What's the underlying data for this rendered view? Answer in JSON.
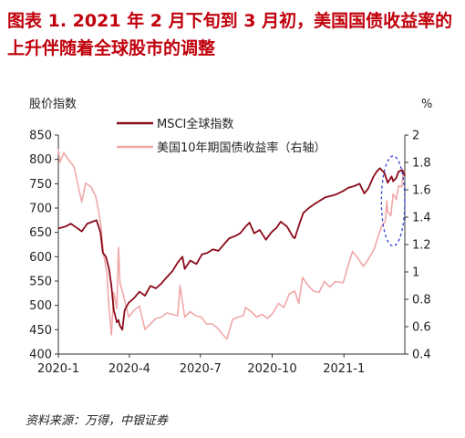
{
  "figure": {
    "title": "图表 1. 2021 年 2 月下旬到 3 月初，美国国债收益率的上升伴随着全球股市的调整",
    "source": "资料来源：万得，中银证券"
  },
  "chart_data": {
    "type": "line",
    "title": "",
    "left_axis_label": "股价指数",
    "right_axis_label": "%",
    "x_axis_range": [
      "2020-01-01",
      "2021-03-20"
    ],
    "x_ticks": [
      {
        "date": "2020-01-01",
        "label": "2020-1"
      },
      {
        "date": "2020-04-01",
        "label": "2020-4"
      },
      {
        "date": "2020-07-01",
        "label": "2020-7"
      },
      {
        "date": "2020-10-01",
        "label": "2020-10"
      },
      {
        "date": "2021-01-01",
        "label": "2021-1"
      }
    ],
    "left_ylim": [
      400,
      850
    ],
    "left_ticks": [
      400,
      450,
      500,
      550,
      600,
      650,
      700,
      750,
      800,
      850
    ],
    "right_ylim": [
      0.4,
      2.0
    ],
    "right_ticks": [
      "0.4",
      "0.6",
      "0.8",
      "1",
      "1.2",
      "1.4",
      "1.6",
      "1.8",
      "2"
    ],
    "grid": false,
    "legend_position": "top-center",
    "series": [
      {
        "name": "MSCI全球指数",
        "axis": "left",
        "color": "#8b0a1a",
        "points": [
          [
            "2020-01-01",
            658
          ],
          [
            "2020-01-10",
            662
          ],
          [
            "2020-01-17",
            668
          ],
          [
            "2020-01-24",
            660
          ],
          [
            "2020-01-31",
            652
          ],
          [
            "2020-02-07",
            668
          ],
          [
            "2020-02-14",
            672
          ],
          [
            "2020-02-19",
            675
          ],
          [
            "2020-02-24",
            650
          ],
          [
            "2020-02-27",
            608
          ],
          [
            "2020-03-02",
            600
          ],
          [
            "2020-03-06",
            575
          ],
          [
            "2020-03-09",
            540
          ],
          [
            "2020-03-12",
            490
          ],
          [
            "2020-03-16",
            465
          ],
          [
            "2020-03-18",
            470
          ],
          [
            "2020-03-20",
            458
          ],
          [
            "2020-03-23",
            450
          ],
          [
            "2020-03-26",
            490
          ],
          [
            "2020-03-31",
            505
          ],
          [
            "2020-04-07",
            515
          ],
          [
            "2020-04-14",
            528
          ],
          [
            "2020-04-21",
            520
          ],
          [
            "2020-04-28",
            540
          ],
          [
            "2020-05-05",
            535
          ],
          [
            "2020-05-12",
            545
          ],
          [
            "2020-05-19",
            558
          ],
          [
            "2020-05-26",
            570
          ],
          [
            "2020-06-02",
            588
          ],
          [
            "2020-06-08",
            600
          ],
          [
            "2020-06-11",
            575
          ],
          [
            "2020-06-18",
            592
          ],
          [
            "2020-06-26",
            585
          ],
          [
            "2020-07-03",
            605
          ],
          [
            "2020-07-10",
            608
          ],
          [
            "2020-07-17",
            615
          ],
          [
            "2020-07-24",
            612
          ],
          [
            "2020-07-31",
            625
          ],
          [
            "2020-08-07",
            638
          ],
          [
            "2020-08-14",
            642
          ],
          [
            "2020-08-21",
            648
          ],
          [
            "2020-08-28",
            662
          ],
          [
            "2020-09-02",
            670
          ],
          [
            "2020-09-08",
            648
          ],
          [
            "2020-09-15",
            655
          ],
          [
            "2020-09-23",
            635
          ],
          [
            "2020-09-30",
            650
          ],
          [
            "2020-10-07",
            660
          ],
          [
            "2020-10-12",
            672
          ],
          [
            "2020-10-20",
            662
          ],
          [
            "2020-10-28",
            640
          ],
          [
            "2020-10-30",
            638
          ],
          [
            "2020-11-05",
            668
          ],
          [
            "2020-11-10",
            690
          ],
          [
            "2020-11-17",
            700
          ],
          [
            "2020-11-24",
            708
          ],
          [
            "2020-12-01",
            715
          ],
          [
            "2020-12-08",
            722
          ],
          [
            "2020-12-15",
            725
          ],
          [
            "2020-12-22",
            728
          ],
          [
            "2020-12-31",
            735
          ],
          [
            "2021-01-07",
            742
          ],
          [
            "2021-01-14",
            745
          ],
          [
            "2021-01-21",
            750
          ],
          [
            "2021-01-27",
            730
          ],
          [
            "2021-02-01",
            740
          ],
          [
            "2021-02-08",
            765
          ],
          [
            "2021-02-12",
            775
          ],
          [
            "2021-02-16",
            782
          ],
          [
            "2021-02-22",
            772
          ],
          [
            "2021-02-26",
            752
          ],
          [
            "2021-03-03",
            765
          ],
          [
            "2021-03-05",
            755
          ],
          [
            "2021-03-09",
            762
          ],
          [
            "2021-03-12",
            775
          ],
          [
            "2021-03-17",
            778
          ],
          [
            "2021-03-20",
            766
          ]
        ]
      },
      {
        "name": "美国10年期国债收益率（右轴）",
        "axis": "right",
        "color": "#f0a8a8",
        "points": [
          [
            "2020-01-01",
            1.9
          ],
          [
            "2020-01-03",
            1.8
          ],
          [
            "2020-01-08",
            1.87
          ],
          [
            "2020-01-14",
            1.82
          ],
          [
            "2020-01-21",
            1.77
          ],
          [
            "2020-01-27",
            1.61
          ],
          [
            "2020-01-31",
            1.51
          ],
          [
            "2020-02-05",
            1.65
          ],
          [
            "2020-02-12",
            1.62
          ],
          [
            "2020-02-18",
            1.55
          ],
          [
            "2020-02-24",
            1.37
          ],
          [
            "2020-02-28",
            1.13
          ],
          [
            "2020-03-03",
            1.0
          ],
          [
            "2020-03-06",
            0.74
          ],
          [
            "2020-03-09",
            0.54
          ],
          [
            "2020-03-12",
            0.85
          ],
          [
            "2020-03-16",
            0.73
          ],
          [
            "2020-03-18",
            1.18
          ],
          [
            "2020-03-20",
            0.92
          ],
          [
            "2020-03-24",
            0.84
          ],
          [
            "2020-03-31",
            0.67
          ],
          [
            "2020-04-07",
            0.72
          ],
          [
            "2020-04-14",
            0.75
          ],
          [
            "2020-04-21",
            0.58
          ],
          [
            "2020-04-28",
            0.62
          ],
          [
            "2020-05-05",
            0.66
          ],
          [
            "2020-05-12",
            0.67
          ],
          [
            "2020-05-19",
            0.7
          ],
          [
            "2020-05-26",
            0.69
          ],
          [
            "2020-06-02",
            0.68
          ],
          [
            "2020-06-05",
            0.9
          ],
          [
            "2020-06-11",
            0.67
          ],
          [
            "2020-06-18",
            0.71
          ],
          [
            "2020-06-25",
            0.68
          ],
          [
            "2020-07-02",
            0.67
          ],
          [
            "2020-07-09",
            0.62
          ],
          [
            "2020-07-16",
            0.62
          ],
          [
            "2020-07-23",
            0.59
          ],
          [
            "2020-07-30",
            0.54
          ],
          [
            "2020-08-04",
            0.51
          ],
          [
            "2020-08-11",
            0.65
          ],
          [
            "2020-08-18",
            0.67
          ],
          [
            "2020-08-25",
            0.68
          ],
          [
            "2020-08-28",
            0.74
          ],
          [
            "2020-09-04",
            0.71
          ],
          [
            "2020-09-11",
            0.67
          ],
          [
            "2020-09-18",
            0.69
          ],
          [
            "2020-09-25",
            0.66
          ],
          [
            "2020-10-02",
            0.7
          ],
          [
            "2020-10-09",
            0.77
          ],
          [
            "2020-10-16",
            0.74
          ],
          [
            "2020-10-23",
            0.84
          ],
          [
            "2020-10-30",
            0.86
          ],
          [
            "2020-11-04",
            0.77
          ],
          [
            "2020-11-09",
            0.96
          ],
          [
            "2020-11-16",
            0.9
          ],
          [
            "2020-11-23",
            0.86
          ],
          [
            "2020-11-30",
            0.85
          ],
          [
            "2020-12-07",
            0.93
          ],
          [
            "2020-12-14",
            0.89
          ],
          [
            "2020-12-21",
            0.93
          ],
          [
            "2020-12-31",
            0.92
          ],
          [
            "2021-01-06",
            1.04
          ],
          [
            "2021-01-12",
            1.15
          ],
          [
            "2021-01-19",
            1.1
          ],
          [
            "2021-01-26",
            1.04
          ],
          [
            "2021-02-02",
            1.1
          ],
          [
            "2021-02-09",
            1.17
          ],
          [
            "2021-02-16",
            1.3
          ],
          [
            "2021-02-19",
            1.34
          ],
          [
            "2021-02-23",
            1.37
          ],
          [
            "2021-02-25",
            1.52
          ],
          [
            "2021-02-26",
            1.44
          ],
          [
            "2021-03-02",
            1.41
          ],
          [
            "2021-03-05",
            1.57
          ],
          [
            "2021-03-09",
            1.53
          ],
          [
            "2021-03-12",
            1.63
          ],
          [
            "2021-03-16",
            1.62
          ],
          [
            "2021-03-18",
            1.72
          ],
          [
            "2021-03-20",
            1.73
          ]
        ]
      }
    ],
    "annotations": [
      {
        "type": "dashed-ellipse",
        "color": "#2d3fd6",
        "date_range": [
          "2021-02-18",
          "2021-03-20"
        ],
        "left_value_range": [
          622,
          807
        ]
      }
    ]
  }
}
